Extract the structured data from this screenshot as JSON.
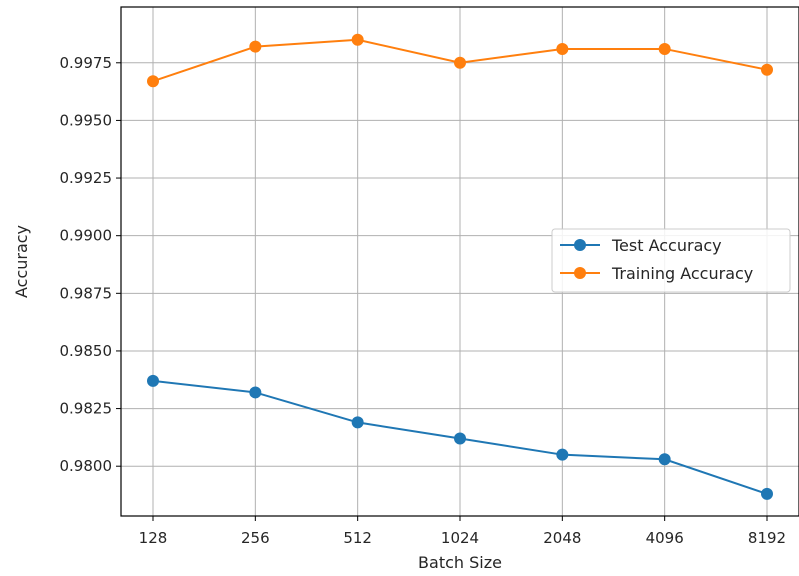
{
  "chart_data": {
    "type": "line",
    "title": "",
    "xlabel": "Batch Size",
    "ylabel": "Accuracy",
    "categories": [
      "128",
      "256",
      "512",
      "1024",
      "2048",
      "4096",
      "8192"
    ],
    "yticks": [
      "0.9800",
      "0.9825",
      "0.9850",
      "0.9875",
      "0.9900",
      "0.9925",
      "0.9950",
      "0.9975"
    ],
    "ylim": [
      0.97784,
      0.99992
    ],
    "grid": true,
    "legend_position": "center-right",
    "series": [
      {
        "name": "Test Accuracy",
        "color": "#1f77b4",
        "marker": "circle",
        "values": [
          0.9837,
          0.9832,
          0.9819,
          0.9812,
          0.9805,
          0.9803,
          0.9788
        ]
      },
      {
        "name": "Training Accuracy",
        "color": "#ff7f0e",
        "marker": "circle",
        "values": [
          0.9967,
          0.9982,
          0.9985,
          0.9975,
          0.9981,
          0.9981,
          0.9972
        ]
      }
    ]
  }
}
